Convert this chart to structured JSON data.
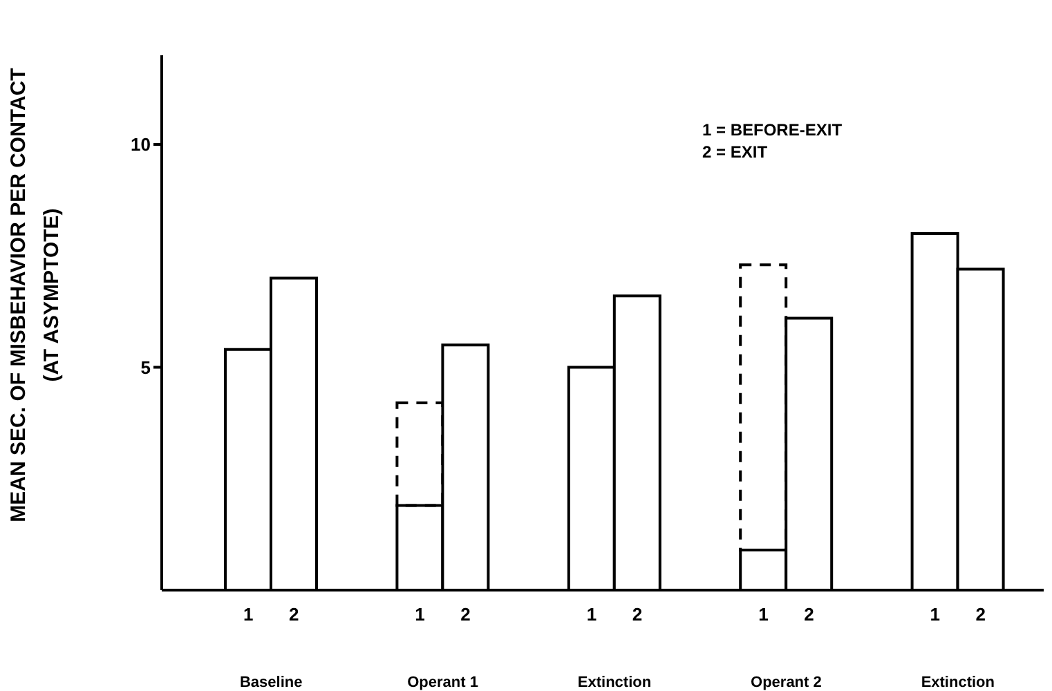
{
  "chart_data": {
    "type": "bar",
    "ylabel": "MEAN SEC. OF MISBEHAVIOR PER CONTACT\n(AT ASYMPTOTE)",
    "categories": [
      "Baseline",
      "Operant 1",
      "Extinction",
      "Operant 2",
      "Extinction"
    ],
    "series": [
      {
        "name": "1",
        "color": "#000000",
        "values": [
          5.4,
          1.9,
          5.0,
          0.9,
          8.0
        ]
      },
      {
        "color": "#000000",
        "line_style": "dashed",
        "base": [
          null,
          1.9,
          null,
          0.9,
          null
        ],
        "values": [
          null,
          2.3,
          null,
          6.4,
          null
        ]
      },
      {
        "name": "2",
        "color": "#000000",
        "values": [
          7.0,
          5.5,
          6.6,
          6.1,
          7.2
        ]
      }
    ],
    "ylim": [
      0,
      12
    ],
    "yticks": [
      5,
      10
    ],
    "grid": false,
    "legend": false,
    "annotations": [
      "1 = BEFORE-EXIT",
      "2 = EXIT"
    ]
  }
}
